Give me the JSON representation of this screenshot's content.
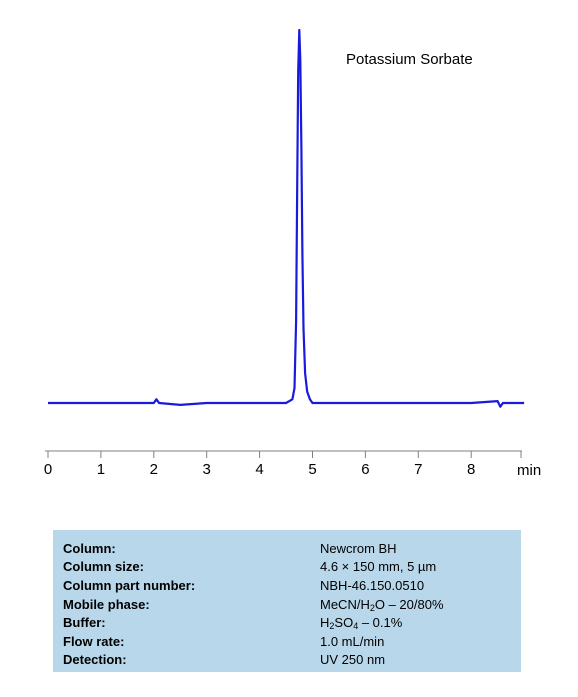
{
  "chart_data": {
    "type": "line",
    "title": "",
    "xlabel": "min",
    "ylabel": "",
    "xlim": [
      0,
      9
    ],
    "x_ticks": [
      0,
      1,
      2,
      3,
      4,
      5,
      6,
      7,
      8
    ],
    "grid": false,
    "color": "#1a1adc",
    "series": [
      {
        "x": [
          0.0,
          1.0,
          1.7,
          2.0,
          2.05,
          2.1,
          2.5,
          3.0,
          4.0,
          4.5,
          4.62,
          4.66,
          4.69,
          4.71,
          4.73,
          4.75,
          4.77,
          4.79,
          4.81,
          4.83,
          4.86,
          4.9,
          4.95,
          5.0,
          5.1,
          6.0,
          7.0,
          8.0,
          8.5,
          8.55,
          8.6,
          9.0
        ],
        "y": [
          0.0,
          0.0,
          0.0,
          0.0,
          0.01,
          0.0,
          -0.005,
          0.0,
          0.0,
          0.0,
          0.01,
          0.04,
          0.22,
          0.58,
          0.89,
          1.0,
          0.92,
          0.68,
          0.4,
          0.2,
          0.08,
          0.03,
          0.01,
          0.0,
          0.0,
          0.0,
          0.0,
          0.0,
          0.005,
          -0.01,
          0.0,
          0.0
        ]
      }
    ],
    "annotations": [
      {
        "text": "Potassium Sorbate"
      }
    ]
  },
  "conditions": [
    {
      "label": "Column:",
      "value": "Newcrom  BH"
    },
    {
      "label": "Column size:",
      "value": "4.6 × 150 mm, 5 µm"
    },
    {
      "label": "Column part number:",
      "value": "NBH-46.150.0510"
    },
    {
      "label": "Mobile phase:",
      "value_parts": [
        "MeCN/H",
        "2",
        "O – 20/80%"
      ]
    },
    {
      "label": "Buffer:",
      "value_parts": [
        "H",
        "2",
        "SO",
        "4",
        " – 0.1%"
      ]
    },
    {
      "label": "Flow rate:",
      "value": "1.0 mL/min"
    },
    {
      "label": "Detection:",
      "value": "UV 250 nm"
    }
  ]
}
